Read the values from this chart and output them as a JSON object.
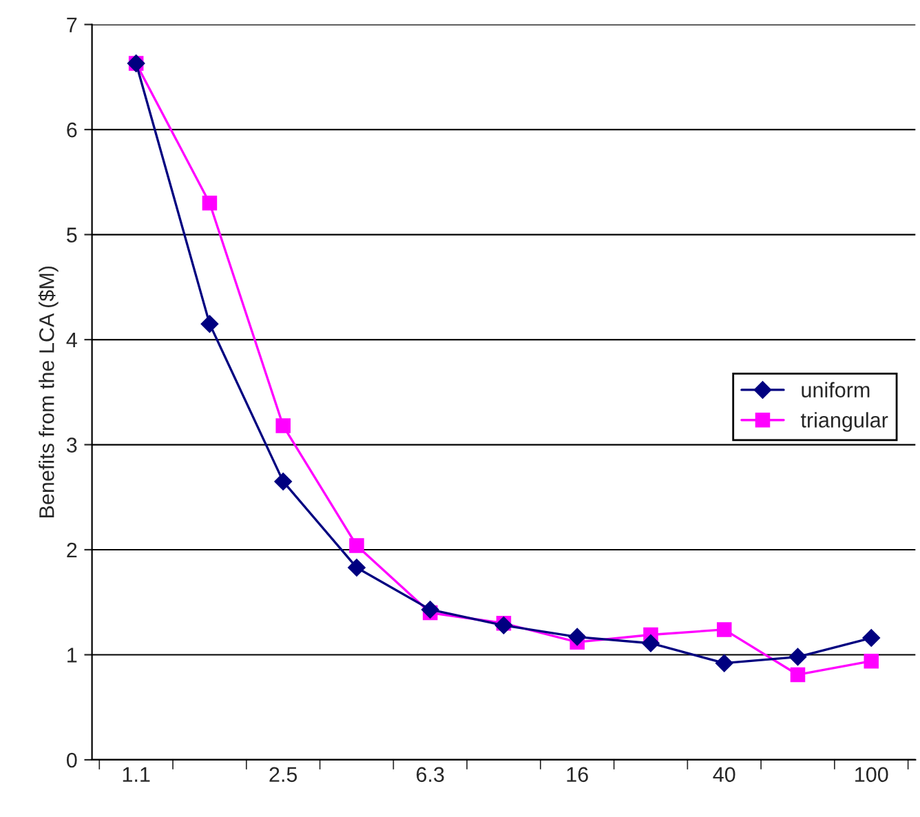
{
  "chart_data": {
    "type": "line",
    "ylabel": "Benefits from the LCA ($M)",
    "categories": [
      "1.1",
      null,
      "2.5",
      null,
      "6.3",
      null,
      "16",
      null,
      "40",
      null,
      "100"
    ],
    "series": [
      {
        "name": "uniform",
        "color": "#000080",
        "marker": "diamond",
        "values": [
          6.63,
          4.15,
          2.65,
          1.83,
          1.43,
          1.28,
          1.17,
          1.11,
          0.92,
          0.98,
          1.16
        ]
      },
      {
        "name": "triangular",
        "color": "#ff00ff",
        "marker": "square",
        "values": [
          6.63,
          5.3,
          3.18,
          2.04,
          1.4,
          1.3,
          1.12,
          1.19,
          1.24,
          0.81,
          0.94
        ]
      }
    ],
    "ylim": [
      0,
      7
    ],
    "yticks": [
      0,
      1,
      2,
      3,
      4,
      5,
      6,
      7
    ],
    "grid": "y",
    "legend": "center right"
  }
}
